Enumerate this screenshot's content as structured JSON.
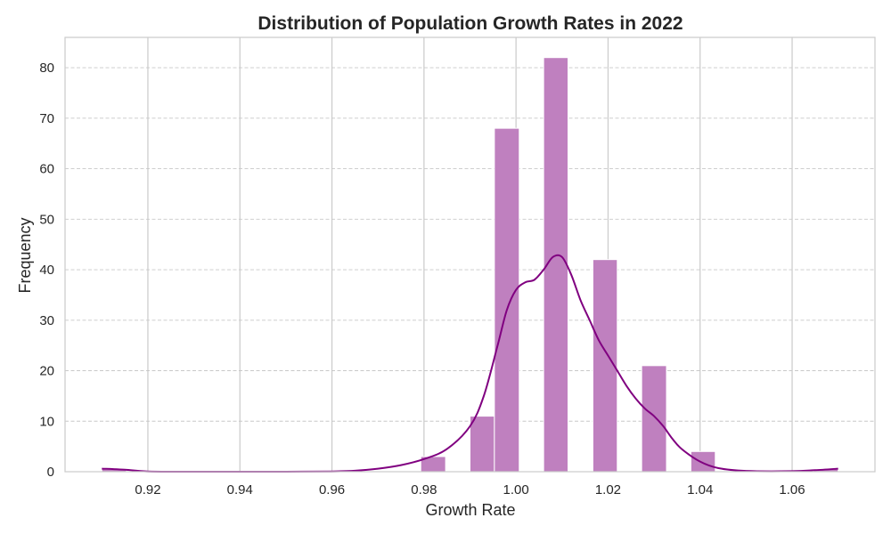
{
  "chart_data": {
    "type": "bar",
    "subtype": "histogram-with-kde",
    "title": "Distribution of Population Growth Rates in 2022",
    "xlabel": "Growth Rate",
    "ylabel": "Frequency",
    "xlim": [
      0.902,
      1.078
    ],
    "ylim": [
      0,
      86
    ],
    "xticks": [
      0.92,
      0.94,
      0.96,
      0.98,
      1.0,
      1.02,
      1.04,
      1.06
    ],
    "xtick_labels": [
      "0.92",
      "0.94",
      "0.96",
      "0.98",
      "1.00",
      "1.02",
      "1.04",
      "1.06"
    ],
    "yticks": [
      0,
      10,
      20,
      30,
      40,
      50,
      60,
      70,
      80
    ],
    "ytick_labels": [
      "0",
      "10",
      "20",
      "30",
      "40",
      "50",
      "60",
      "70",
      "80"
    ],
    "bin_width": 0.005333,
    "bins": [
      {
        "x0": 0.91,
        "x1": 0.9153,
        "count": 0.5
      },
      {
        "x0": 0.9793,
        "x1": 0.9847,
        "count": 3
      },
      {
        "x0": 0.99,
        "x1": 0.9953,
        "count": 11
      },
      {
        "x0": 0.9953,
        "x1": 1.0007,
        "count": 68
      },
      {
        "x0": 1.006,
        "x1": 1.0113,
        "count": 82
      },
      {
        "x0": 1.0167,
        "x1": 1.022,
        "count": 42
      },
      {
        "x0": 1.0273,
        "x1": 1.0327,
        "count": 21
      },
      {
        "x0": 1.038,
        "x1": 1.0433,
        "count": 4
      },
      {
        "x0": 1.0647,
        "x1": 1.07,
        "count": 0.5
      }
    ],
    "kde": {
      "x": [
        0.91,
        0.915,
        0.92,
        0.93,
        0.94,
        0.95,
        0.96,
        0.965,
        0.97,
        0.975,
        0.98,
        0.985,
        0.99,
        0.993,
        0.996,
        0.998,
        1.0,
        1.002,
        1.004,
        1.006,
        1.008,
        1.01,
        1.012,
        1.014,
        1.016,
        1.018,
        1.02,
        1.022,
        1.024,
        1.026,
        1.028,
        1.03,
        1.032,
        1.034,
        1.036,
        1.04,
        1.044,
        1.05,
        1.06,
        1.065,
        1.07
      ],
      "y": [
        0.6,
        0.4,
        0.05,
        0.01,
        0.01,
        0.01,
        0.05,
        0.2,
        0.6,
        1.3,
        2.5,
        4.5,
        9,
        15,
        25,
        32,
        36,
        37.5,
        38,
        40,
        42.5,
        42.5,
        39,
        34,
        30,
        26,
        23,
        20,
        17,
        14.5,
        12.5,
        11,
        9,
        6.5,
        4.5,
        2,
        0.7,
        0.15,
        0.1,
        0.3,
        0.6
      ]
    },
    "bar_color": "#bf80bf",
    "line_color": "#800080",
    "grid": true,
    "legend": "none"
  }
}
